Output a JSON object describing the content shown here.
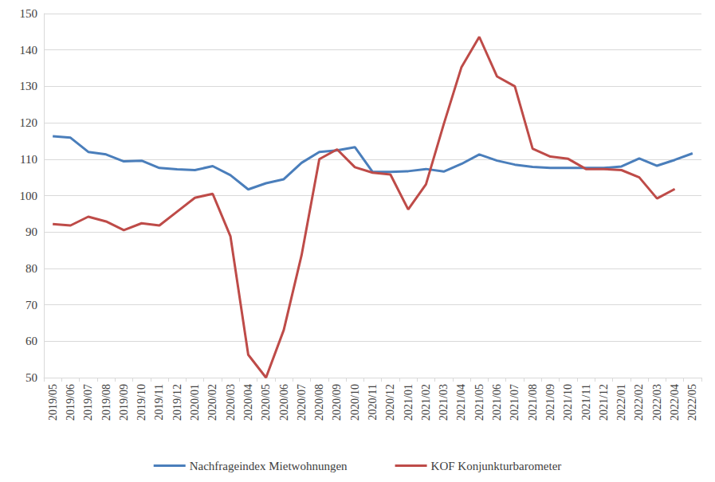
{
  "chart_data": {
    "type": "line",
    "categories": [
      "2019/05",
      "2019/06",
      "2019/07",
      "2019/08",
      "2019/09",
      "2019/10",
      "2019/11",
      "2019/12",
      "2020/01",
      "2020/02",
      "2020/03",
      "2020/04",
      "2020/05",
      "2020/06",
      "2020/07",
      "2020/08",
      "2020/09",
      "2020/10",
      "2020/11",
      "2020/12",
      "2021/01",
      "2021/02",
      "2021/03",
      "2021/04",
      "2021/05",
      "2021/06",
      "2021/07",
      "2021/08",
      "2021/09",
      "2021/10",
      "2021/11",
      "2021/12",
      "2022/01",
      "2022/02",
      "2022/03",
      "2022/04",
      "2022/05"
    ],
    "series": [
      {
        "name": "Nachfrageindex Mietwohnungen",
        "color": "#4a7ebb",
        "values": [
          116.3,
          115.9,
          112.0,
          111.3,
          109.4,
          109.6,
          107.6,
          107.2,
          107.0,
          108.1,
          105.6,
          101.7,
          103.4,
          104.5,
          109.0,
          112.0,
          112.4,
          113.3,
          106.5,
          106.5,
          106.7,
          107.3,
          106.6,
          108.7,
          111.3,
          109.6,
          108.5,
          107.9,
          107.6,
          107.6,
          107.6,
          107.6,
          108.0,
          110.2,
          108.2,
          109.8,
          111.6
        ]
      },
      {
        "name": "KOF Konjunkturbarometer",
        "color": "#be4b48",
        "values": [
          92.2,
          91.8,
          94.2,
          92.9,
          90.5,
          92.4,
          91.8,
          95.6,
          99.4,
          100.5,
          88.8,
          56.3,
          50.0,
          63.1,
          83.6,
          110.0,
          112.7,
          107.8,
          106.3,
          105.8,
          96.2,
          103.1,
          119.6,
          135.3,
          143.6,
          132.7,
          130.0,
          112.9,
          110.7,
          110.1,
          107.3,
          107.3,
          107.0,
          105.0,
          99.2,
          101.8,
          null
        ]
      }
    ],
    "ylim": [
      50,
      150
    ],
    "yticks": [
      50,
      60,
      70,
      80,
      90,
      100,
      110,
      120,
      130,
      140,
      150
    ],
    "grid": true,
    "legend": "bottom"
  }
}
